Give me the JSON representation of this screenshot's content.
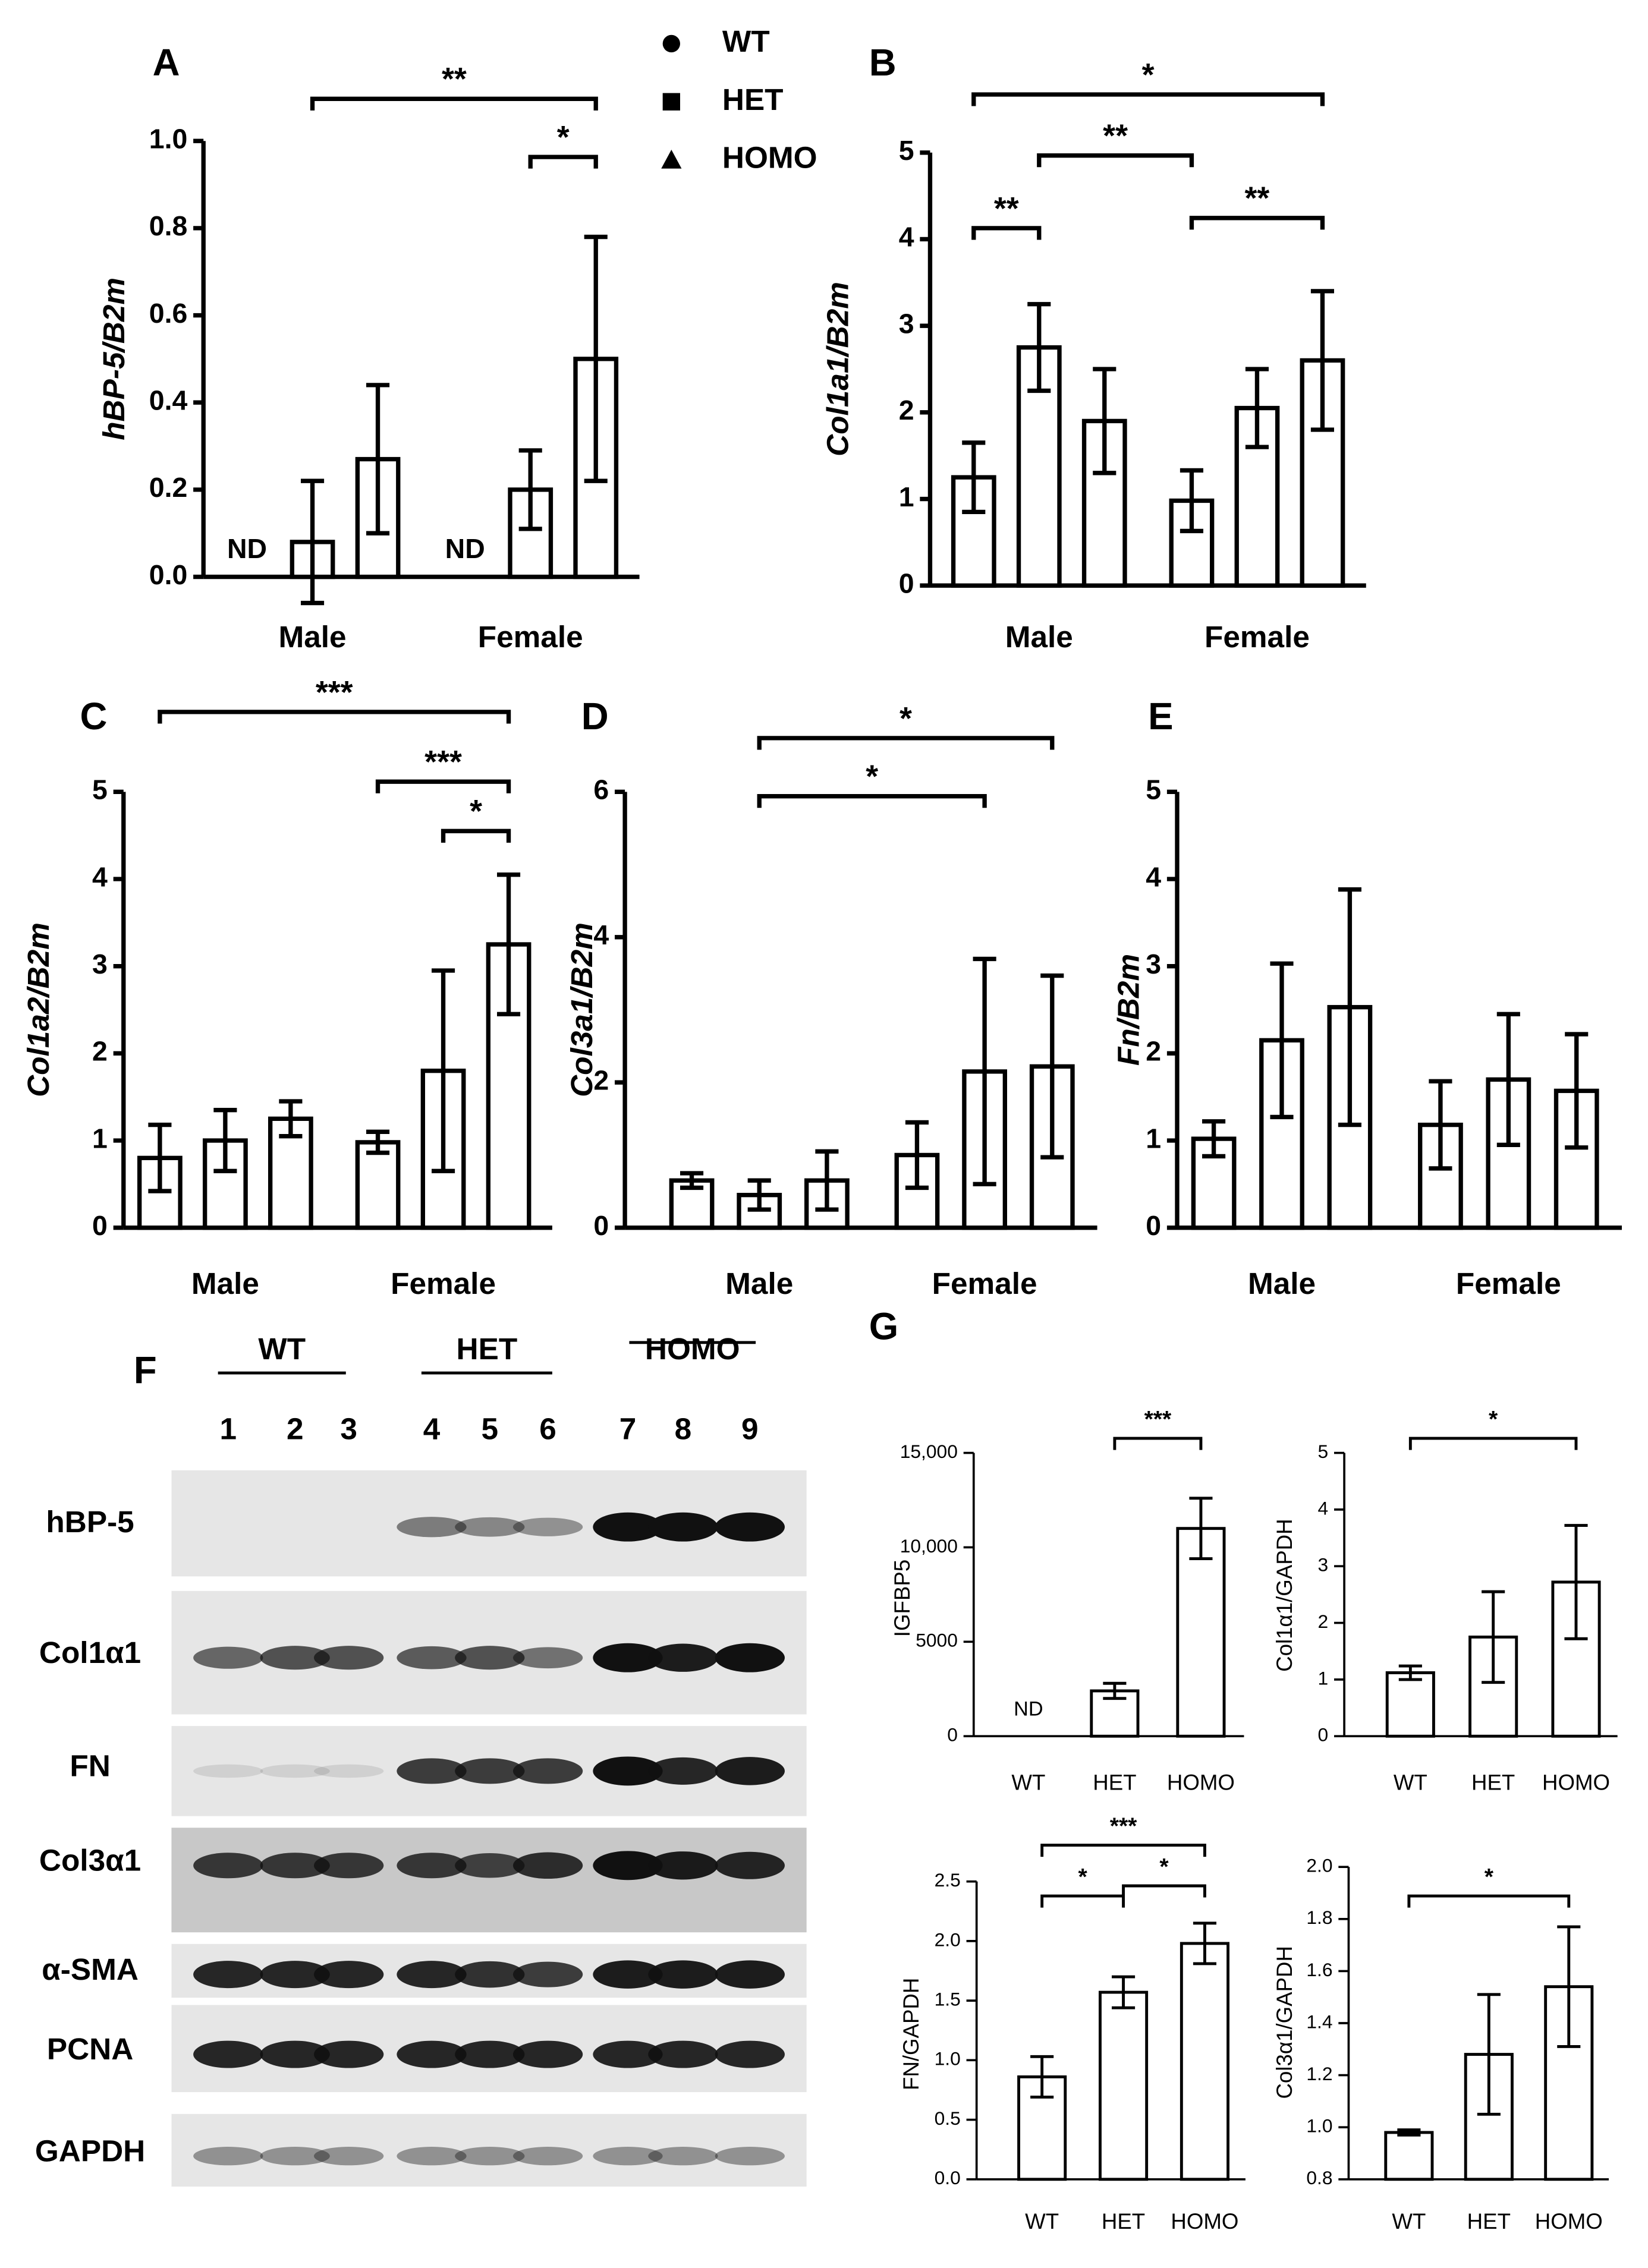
{
  "legend": {
    "entries": [
      "WT",
      "HET",
      "HOMO"
    ]
  },
  "blot": {
    "panel": "F",
    "groups": [
      "WT",
      "HET",
      "HOMO"
    ],
    "lanes": [
      "1",
      "2",
      "3",
      "4",
      "5",
      "6",
      "7",
      "8",
      "9"
    ],
    "rows": [
      "hBP-5",
      "Col1α1",
      "FN",
      "Col3α1",
      "α-SMA",
      "PCNA",
      "GAPDH"
    ]
  },
  "chart_data": [
    {
      "type": "bar",
      "panel": "A",
      "y_label": "hBP-5/B2m",
      "color": "#ffffff",
      "categories": [
        "Male",
        "Female"
      ],
      "series": [
        {
          "values": [
            null,
            null
          ],
          "value_labels": [
            "ND",
            "ND"
          ]
        },
        {
          "values": [
            0.08,
            0.2
          ],
          "errors": [
            0.14,
            0.09
          ]
        },
        {
          "values": [
            0.27,
            0.5
          ],
          "errors": [
            0.17,
            0.28
          ]
        }
      ],
      "ylim": [
        0,
        1
      ],
      "yticks": [
        {
          "value": 0,
          "label": "0.0"
        },
        0.2,
        0.4,
        0.6,
        0.8,
        {
          "value": 1,
          "label": "1.0"
        }
      ],
      "annotations": [
        "**",
        "*"
      ]
    },
    {
      "type": "bar",
      "panel": "B",
      "y_label": "Col1a1/B2m",
      "color": "#ffffff",
      "categories": [
        "Male",
        "Female"
      ],
      "series": [
        {
          "values": [
            1.25,
            0.98
          ],
          "errors": [
            0.4,
            0.35
          ]
        },
        {
          "values": [
            2.75,
            2.05
          ],
          "errors": [
            0.5,
            0.45
          ]
        },
        {
          "values": [
            1.9,
            2.6
          ],
          "errors": [
            0.6,
            0.8
          ]
        }
      ],
      "ylim": [
        0,
        5
      ],
      "yticks": [
        0,
        1,
        2,
        3,
        4,
        5
      ],
      "annotations": [
        "*",
        "**",
        "**",
        "**"
      ]
    },
    {
      "type": "bar",
      "panel": "C",
      "y_label": "Col1a2/B2m",
      "color": "#ffffff",
      "categories": [
        "Male",
        "Female"
      ],
      "series": [
        {
          "values": [
            0.8,
            0.98
          ],
          "errors": [
            0.38,
            0.12
          ]
        },
        {
          "values": [
            1.0,
            1.8
          ],
          "errors": [
            0.35,
            1.15
          ]
        },
        {
          "values": [
            1.25,
            3.25
          ],
          "errors": [
            0.2,
            0.8
          ]
        }
      ],
      "ylim": [
        0,
        5
      ],
      "yticks": [
        0,
        1,
        2,
        3,
        4,
        5
      ],
      "annotations": [
        "***",
        "***",
        "*"
      ]
    },
    {
      "type": "bar",
      "panel": "D",
      "y_label": "Col3a1/B2m",
      "color": "#ffffff",
      "categories": [
        "Male",
        "Female"
      ],
      "series": [
        {
          "values": [
            0.65,
            1.0
          ],
          "errors": [
            0.1,
            0.45
          ]
        },
        {
          "values": [
            0.45,
            2.15
          ],
          "errors": [
            0.2,
            1.55
          ]
        },
        {
          "values": [
            0.65,
            2.22
          ],
          "errors": [
            0.4,
            1.25
          ]
        }
      ],
      "ylim": [
        0,
        6
      ],
      "yticks": [
        0,
        2,
        4,
        6
      ],
      "annotations": [
        "*",
        "*"
      ]
    },
    {
      "type": "bar",
      "panel": "E",
      "y_label": "Fn/B2m",
      "color": "#ffffff",
      "categories": [
        "Male",
        "Female"
      ],
      "series": [
        {
          "values": [
            1.02,
            1.18
          ],
          "errors": [
            0.2,
            0.5
          ]
        },
        {
          "values": [
            2.15,
            1.7
          ],
          "errors": [
            0.88,
            0.75
          ]
        },
        {
          "values": [
            2.53,
            1.57
          ],
          "errors": [
            1.35,
            0.65
          ]
        }
      ],
      "ylim": [
        0,
        5
      ],
      "yticks": [
        0,
        1,
        2,
        3,
        4,
        5
      ],
      "annotations": []
    },
    {
      "type": "bar",
      "panel": "G",
      "y_label": "IGFBP5",
      "color": "#ffffff",
      "categories": [
        "WT",
        "HET",
        "HOMO"
      ],
      "values": [
        null,
        2400,
        11000
      ],
      "errors": [
        null,
        400,
        1600
      ],
      "value_labels": [
        "ND",
        null,
        null
      ],
      "ylim": [
        0,
        15000
      ],
      "yticks": [
        0,
        5000,
        {
          "value": 10000,
          "label": "10,000"
        },
        {
          "value": 15000,
          "label": "15,000"
        }
      ],
      "annotations": [
        "***"
      ]
    },
    {
      "type": "bar",
      "y_label": "Col1α1/GAPDH",
      "color": "#ffffff",
      "categories": [
        "WT",
        "HET",
        "HOMO"
      ],
      "values": [
        1.12,
        1.75,
        2.72
      ],
      "errors": [
        0.12,
        0.8,
        1.0
      ],
      "ylim": [
        0,
        5
      ],
      "yticks": [
        0,
        1,
        2,
        3,
        4,
        5
      ],
      "annotations": [
        "*"
      ]
    },
    {
      "type": "bar",
      "y_label": "FN/GAPDH",
      "color": "#ffffff",
      "categories": [
        "WT",
        "HET",
        "HOMO"
      ],
      "values": [
        0.86,
        1.57,
        1.98
      ],
      "errors": [
        0.17,
        0.13,
        0.17
      ],
      "ylim": [
        0,
        2.5
      ],
      "yticks": [
        {
          "value": 0,
          "label": "0.0"
        },
        0.5,
        {
          "value": 1,
          "label": "1.0"
        },
        1.5,
        {
          "value": 2,
          "label": "2.0"
        },
        2.5
      ],
      "annotations": [
        "***",
        "*",
        "*"
      ]
    },
    {
      "type": "bar",
      "y_label": "Col3α1/GAPDH",
      "color": "#ffffff",
      "categories": [
        "WT",
        "HET",
        "HOMO"
      ],
      "values": [
        0.98,
        1.28,
        1.54
      ],
      "errors": [
        0.01,
        0.23,
        0.23
      ],
      "ylim": [
        0.8,
        2
      ],
      "yticks": [
        0.8,
        {
          "value": 1,
          "label": "1.0"
        },
        1.2,
        1.4,
        1.6,
        1.8,
        {
          "value": 2,
          "label": "2.0"
        }
      ],
      "annotations": [
        "*"
      ]
    }
  ]
}
